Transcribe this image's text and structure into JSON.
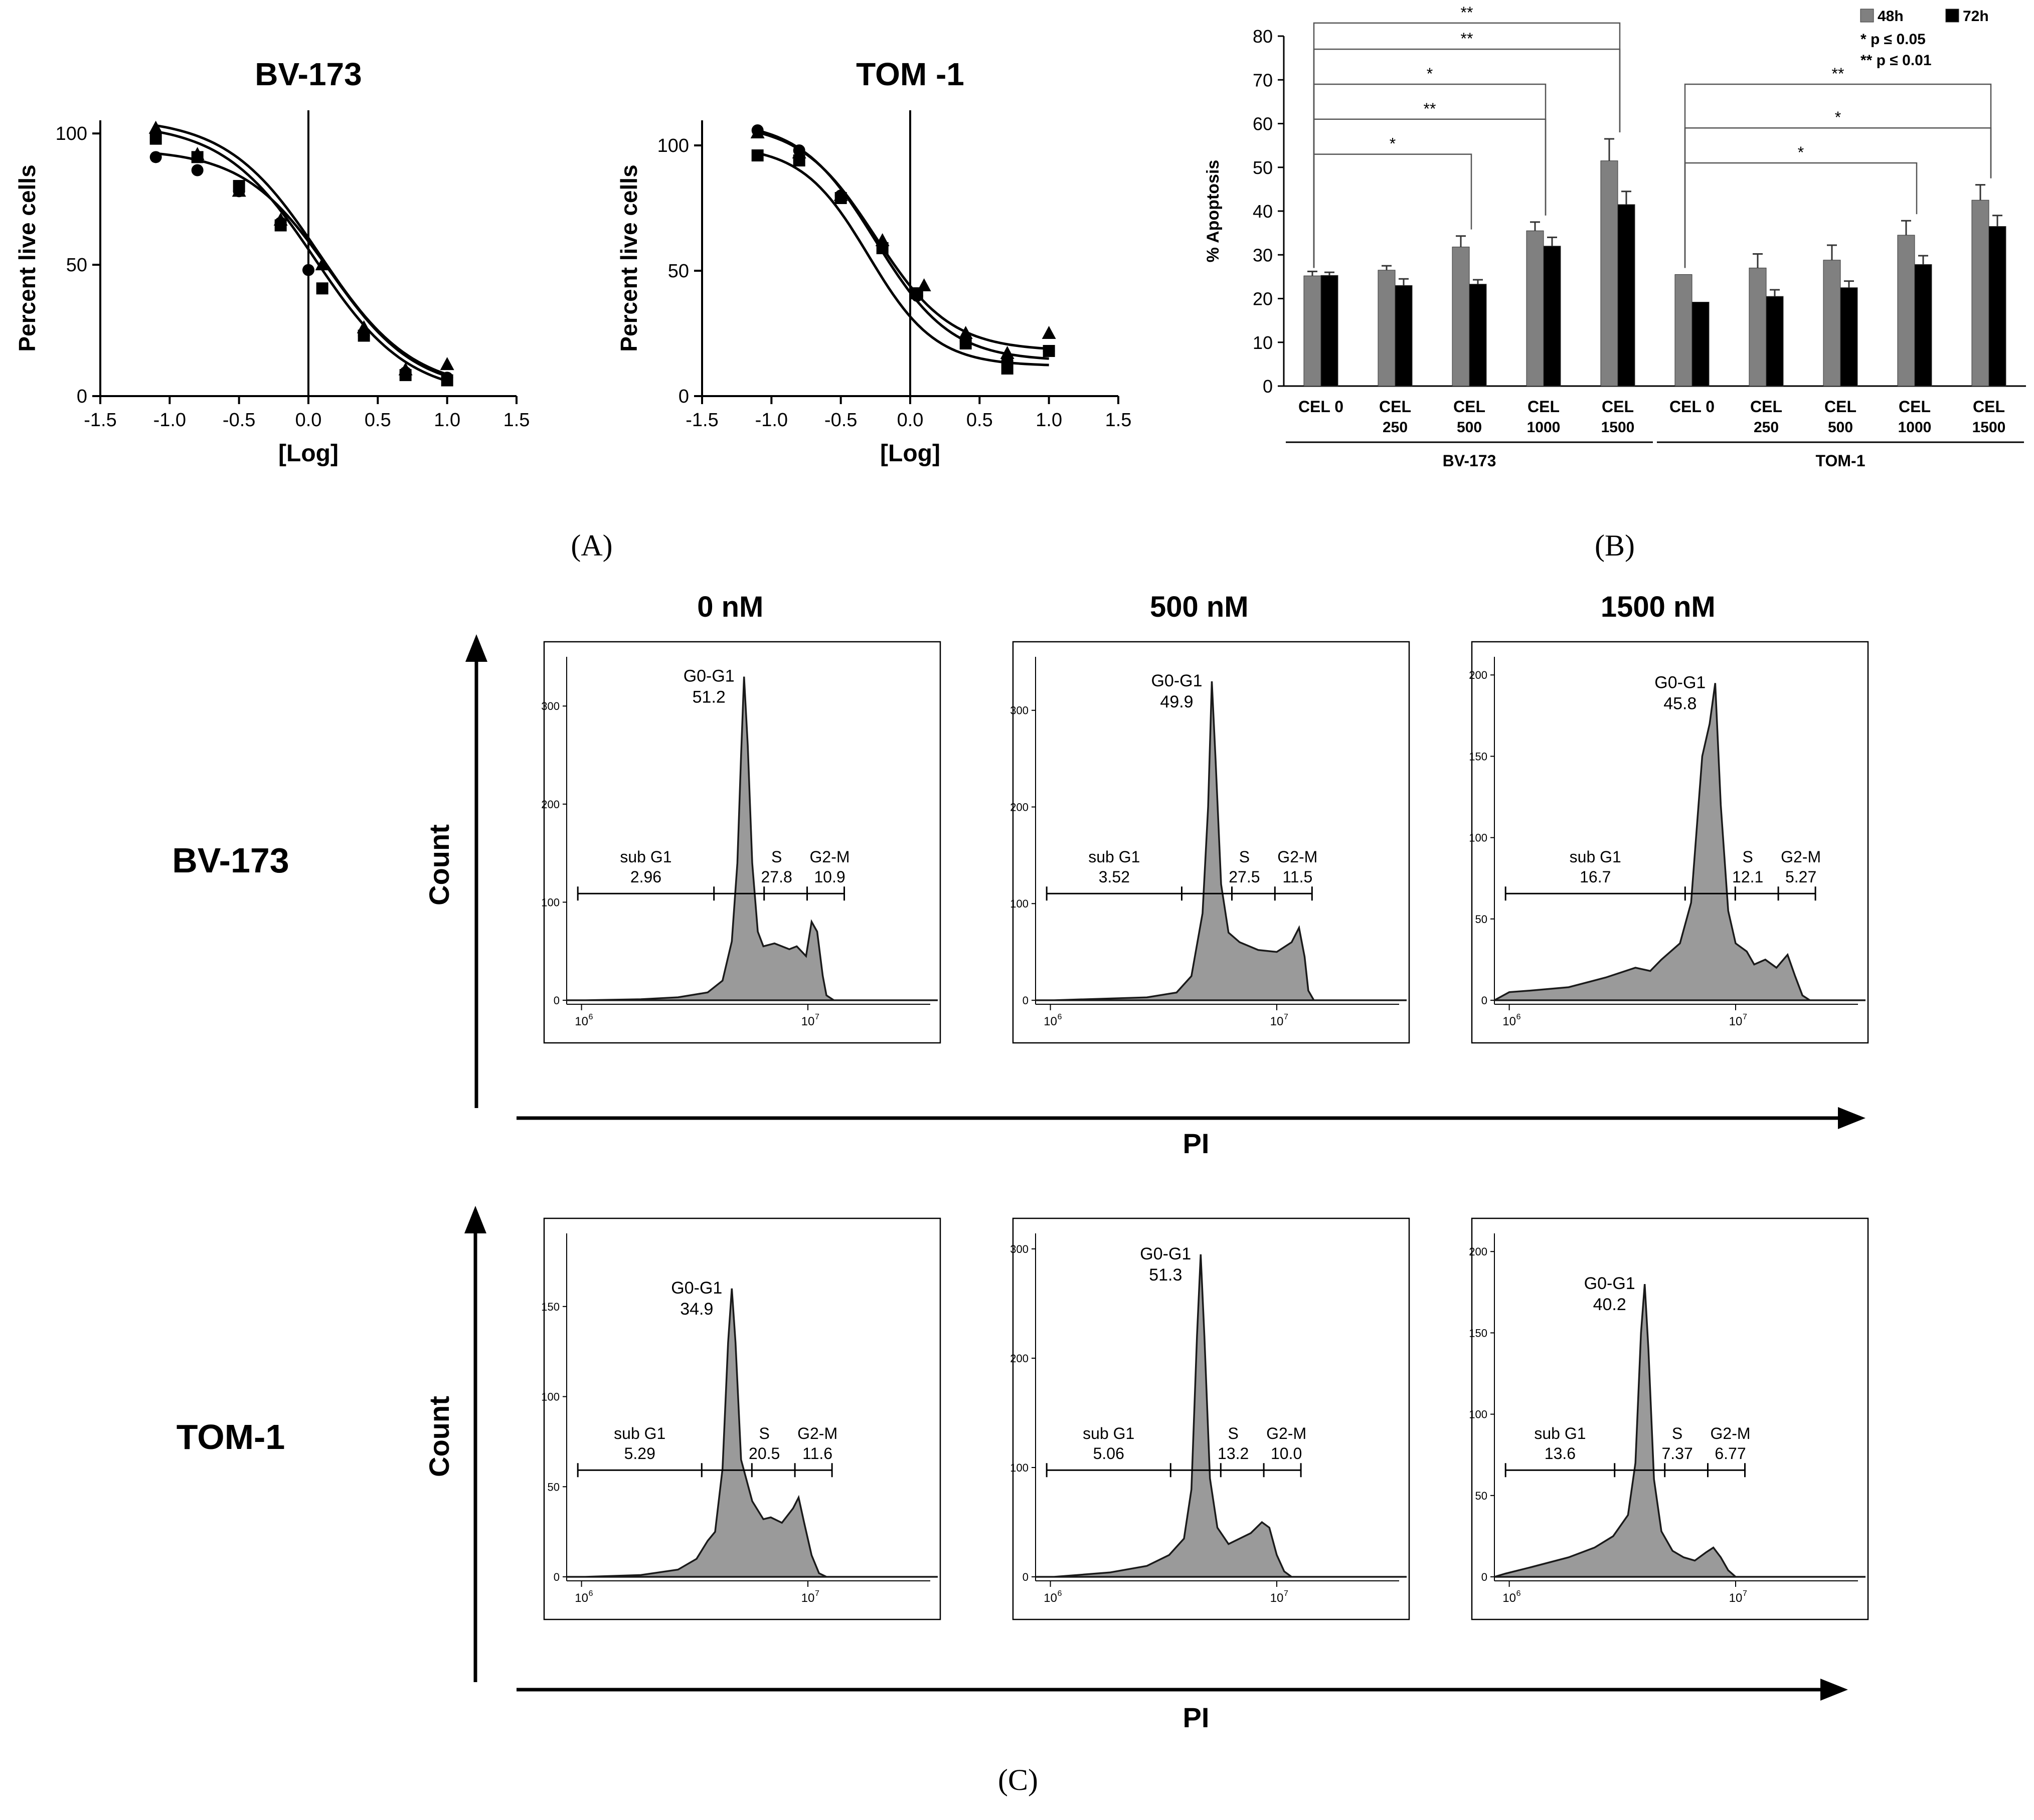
{
  "panel_labels": {
    "A": "(A)",
    "B": "(B)",
    "C": "(C)"
  },
  "chart_data": [
    {
      "id": "A1",
      "type": "scatter",
      "title": "BV-173",
      "xlabel": "[Log]",
      "ylabel": "Percent live cells",
      "xlim": [
        -1.5,
        1.5
      ],
      "ylim": [
        0,
        105
      ],
      "xticks": [
        "-1.5",
        "-1.0",
        "-0.5",
        "0.0",
        "0.5",
        "1.0",
        "1.5"
      ],
      "yticks": [
        "0",
        "50",
        "100"
      ],
      "series": [
        {
          "marker": "circle",
          "x": [
            -1.1,
            -0.8,
            -0.5,
            -0.2,
            0.0,
            0.4,
            0.7,
            1.0
          ],
          "y": [
            91,
            86,
            78,
            66,
            48,
            23,
            9,
            7
          ],
          "fit": {
            "top": 94,
            "bottom": 2,
            "ic50": 0.15,
            "hill": 1.4
          }
        },
        {
          "marker": "square",
          "x": [
            -1.1,
            -0.8,
            -0.5,
            -0.2,
            0.1,
            0.4,
            0.7,
            1.0
          ],
          "y": [
            98,
            91,
            80,
            65,
            41,
            23,
            8,
            6
          ],
          "fit": {
            "top": 104,
            "bottom": 0,
            "ic50": 0.05,
            "hill": 1.3
          }
        },
        {
          "marker": "triangle",
          "x": [
            -1.1,
            -0.8,
            -0.5,
            -0.2,
            0.1,
            0.4,
            0.7,
            1.0
          ],
          "y": [
            102,
            92,
            78,
            67,
            50,
            26,
            10,
            12
          ],
          "fit": {
            "top": 106,
            "bottom": 2,
            "ic50": 0.08,
            "hill": 1.3
          }
        }
      ]
    },
    {
      "id": "A2",
      "type": "scatter",
      "title": "TOM -1",
      "xlabel": "[Log]",
      "ylabel": "Percent live cells",
      "xlim": [
        -1.5,
        1.5
      ],
      "ylim": [
        0,
        110
      ],
      "xticks": [
        "-1.5",
        "-1.0",
        "-0.5",
        "0.0",
        "0.5",
        "1.0",
        "1.5"
      ],
      "yticks": [
        "0",
        "50",
        "100"
      ],
      "series": [
        {
          "marker": "circle",
          "x": [
            -1.1,
            -0.8,
            -0.5,
            -0.2,
            0.05,
            0.4,
            0.7,
            1.0
          ],
          "y": [
            106,
            98,
            80,
            60,
            40,
            22,
            14,
            18
          ],
          "fit": {
            "top": 110,
            "bottom": 14,
            "ic50": -0.25,
            "hill": 1.6
          }
        },
        {
          "marker": "square",
          "x": [
            -1.1,
            -0.8,
            -0.5,
            -0.2,
            0.05,
            0.4,
            0.7,
            1.0
          ],
          "y": [
            96,
            94,
            79,
            59,
            41,
            21,
            11,
            18
          ],
          "fit": {
            "top": 100,
            "bottom": 12,
            "ic50": -0.3,
            "hill": 1.8
          }
        },
        {
          "marker": "triangle",
          "x": [
            -1.1,
            -0.8,
            -0.5,
            -0.2,
            0.1,
            0.4,
            0.7,
            1.0
          ],
          "y": [
            105,
            97,
            80,
            62,
            44,
            25,
            17,
            25
          ],
          "fit": {
            "top": 109,
            "bottom": 18,
            "ic50": -0.25,
            "hill": 1.6
          }
        }
      ]
    },
    {
      "id": "B",
      "type": "bar",
      "ylabel": "% Apoptosis",
      "ylim": [
        0,
        80
      ],
      "yticks": [
        "0",
        "10",
        "20",
        "30",
        "40",
        "50",
        "60",
        "70",
        "80"
      ],
      "categories": [
        {
          "line1": "CEL 0",
          "line2": ""
        },
        {
          "line1": "CEL",
          "line2": "250"
        },
        {
          "line1": "CEL",
          "line2": "500"
        },
        {
          "line1": "CEL",
          "line2": "1000"
        },
        {
          "line1": "CEL",
          "line2": "1500"
        },
        {
          "line1": "CEL 0",
          "line2": ""
        },
        {
          "line1": "CEL",
          "line2": "250"
        },
        {
          "line1": "CEL",
          "line2": "500"
        },
        {
          "line1": "CEL",
          "line2": "1000"
        },
        {
          "line1": "CEL",
          "line2": "1500"
        }
      ],
      "groups": [
        {
          "label": "BV-173",
          "from": 0,
          "to": 4
        },
        {
          "label": "TOM-1",
          "from": 5,
          "to": 9
        }
      ],
      "series": [
        {
          "name": "48h",
          "color": "#808080",
          "values": [
            25.2,
            26.5,
            31.8,
            35.5,
            51.5,
            25.5,
            27.0,
            28.8,
            34.5,
            42.5
          ],
          "errors": [
            1.0,
            1.0,
            2.5,
            2.0,
            5.0,
            0,
            3.2,
            3.4,
            3.3,
            3.5
          ]
        },
        {
          "name": "72h",
          "color": "#000000",
          "values": [
            25.3,
            23.0,
            23.3,
            32.0,
            41.5,
            19.2,
            20.5,
            22.5,
            27.8,
            36.5
          ],
          "errors": [
            0.7,
            1.5,
            1.0,
            2.0,
            3.0,
            0,
            1.5,
            1.5,
            2.0,
            2.5
          ]
        }
      ],
      "significance": [
        {
          "from": 0,
          "to": 2,
          "label": "*"
        },
        {
          "from": 0,
          "to": 3,
          "label": "**"
        },
        {
          "from": 0,
          "to": 3,
          "label": "*"
        },
        {
          "from": 0,
          "to": 4,
          "label": "**"
        },
        {
          "from": 0,
          "to": 4,
          "label": "**"
        },
        {
          "from": 5,
          "to": 8,
          "label": "*"
        },
        {
          "from": 5,
          "to": 9,
          "label": "*"
        },
        {
          "from": 5,
          "to": 9,
          "label": "**"
        }
      ],
      "legend": {
        "items": [
          "48h",
          "72h"
        ],
        "notes": [
          "*  p ≤ 0.05",
          "** p ≤ 0.01"
        ],
        "placement": "top-right"
      }
    },
    {
      "id": "C",
      "type": "area",
      "column_titles": [
        "0 nM",
        "500 nM",
        "1500 nM"
      ],
      "row_labels": [
        "BV-173",
        "TOM-1"
      ],
      "ylabel": "Count",
      "xlabel": "PI",
      "tick_base": "10",
      "tick_exps": [
        "6",
        "7"
      ],
      "histograms": [
        {
          "row": 0,
          "col": 0,
          "ymax": 340,
          "yticks": [
            "0",
            "100",
            "200",
            "300"
          ],
          "gates": {
            "subG1": "2.96",
            "G0G1": "51.2",
            "S": "27.8",
            "G2M": "10.9"
          },
          "profile": [
            [
              0.0,
              0
            ],
            [
              0.05,
              0
            ],
            [
              0.2,
              1
            ],
            [
              0.3,
              3
            ],
            [
              0.38,
              8
            ],
            [
              0.42,
              20
            ],
            [
              0.445,
              60
            ],
            [
              0.46,
              140
            ],
            [
              0.47,
              250
            ],
            [
              0.478,
              330
            ],
            [
              0.488,
              260
            ],
            [
              0.5,
              140
            ],
            [
              0.515,
              70
            ],
            [
              0.53,
              55
            ],
            [
              0.56,
              58
            ],
            [
              0.6,
              52
            ],
            [
              0.62,
              55
            ],
            [
              0.645,
              45
            ],
            [
              0.66,
              80
            ],
            [
              0.675,
              70
            ],
            [
              0.69,
              25
            ],
            [
              0.7,
              5
            ],
            [
              0.72,
              0
            ],
            [
              1.0,
              0
            ]
          ]
        },
        {
          "row": 0,
          "col": 1,
          "ymax": 345,
          "yticks": [
            "0",
            "100",
            "200",
            "300"
          ],
          "gates": {
            "subG1": "3.52",
            "G0G1": "49.9",
            "S": "27.5",
            "G2M": "11.5"
          },
          "profile": [
            [
              0.0,
              0
            ],
            [
              0.05,
              0
            ],
            [
              0.3,
              3
            ],
            [
              0.38,
              8
            ],
            [
              0.42,
              25
            ],
            [
              0.45,
              90
            ],
            [
              0.465,
              200
            ],
            [
              0.475,
              330
            ],
            [
              0.485,
              250
            ],
            [
              0.5,
              120
            ],
            [
              0.52,
              70
            ],
            [
              0.55,
              60
            ],
            [
              0.6,
              52
            ],
            [
              0.65,
              50
            ],
            [
              0.69,
              60
            ],
            [
              0.71,
              75
            ],
            [
              0.725,
              45
            ],
            [
              0.735,
              10
            ],
            [
              0.75,
              0
            ],
            [
              1.0,
              0
            ]
          ]
        },
        {
          "row": 0,
          "col": 2,
          "ymax": 205,
          "yticks": [
            "0",
            "50",
            "100",
            "150",
            "200"
          ],
          "gates": {
            "subG1": "16.7",
            "G0G1": "45.8",
            "S": "12.1",
            "G2M": "5.27"
          },
          "profile": [
            [
              0.0,
              0
            ],
            [
              0.04,
              5
            ],
            [
              0.1,
              6
            ],
            [
              0.2,
              8
            ],
            [
              0.3,
              14
            ],
            [
              0.38,
              20
            ],
            [
              0.42,
              18
            ],
            [
              0.45,
              25
            ],
            [
              0.5,
              35
            ],
            [
              0.53,
              60
            ],
            [
              0.56,
              150
            ],
            [
              0.58,
              170
            ],
            [
              0.595,
              195
            ],
            [
              0.61,
              120
            ],
            [
              0.63,
              55
            ],
            [
              0.65,
              35
            ],
            [
              0.68,
              30
            ],
            [
              0.7,
              22
            ],
            [
              0.73,
              25
            ],
            [
              0.76,
              20
            ],
            [
              0.79,
              28
            ],
            [
              0.81,
              15
            ],
            [
              0.83,
              3
            ],
            [
              0.85,
              0
            ],
            [
              1.0,
              0
            ]
          ]
        },
        {
          "row": 1,
          "col": 0,
          "ymax": 185,
          "yticks": [
            "0",
            "50",
            "100",
            "150"
          ],
          "gates": {
            "subG1": "5.29",
            "G0G1": "34.9",
            "S": "20.5",
            "G2M": "11.6"
          },
          "profile": [
            [
              0.0,
              0
            ],
            [
              0.05,
              0
            ],
            [
              0.2,
              1
            ],
            [
              0.3,
              4
            ],
            [
              0.35,
              10
            ],
            [
              0.38,
              20
            ],
            [
              0.4,
              25
            ],
            [
              0.42,
              60
            ],
            [
              0.435,
              130
            ],
            [
              0.445,
              160
            ],
            [
              0.455,
              130
            ],
            [
              0.47,
              65
            ],
            [
              0.5,
              42
            ],
            [
              0.53,
              32
            ],
            [
              0.55,
              33
            ],
            [
              0.58,
              30
            ],
            [
              0.61,
              38
            ],
            [
              0.625,
              44
            ],
            [
              0.64,
              30
            ],
            [
              0.66,
              12
            ],
            [
              0.68,
              2
            ],
            [
              0.7,
              0
            ],
            [
              1.0,
              0
            ]
          ]
        },
        {
          "row": 1,
          "col": 1,
          "ymax": 305,
          "yticks": [
            "0",
            "100",
            "200",
            "300"
          ],
          "gates": {
            "subG1": "5.06",
            "G0G1": "51.3",
            "S": "13.2",
            "G2M": "10.0"
          },
          "profile": [
            [
              0.0,
              0
            ],
            [
              0.05,
              0
            ],
            [
              0.2,
              4
            ],
            [
              0.3,
              10
            ],
            [
              0.36,
              20
            ],
            [
              0.4,
              35
            ],
            [
              0.42,
              80
            ],
            [
              0.435,
              220
            ],
            [
              0.445,
              295
            ],
            [
              0.455,
              220
            ],
            [
              0.47,
              90
            ],
            [
              0.49,
              45
            ],
            [
              0.52,
              30
            ],
            [
              0.55,
              35
            ],
            [
              0.58,
              40
            ],
            [
              0.61,
              50
            ],
            [
              0.63,
              45
            ],
            [
              0.65,
              20
            ],
            [
              0.67,
              5
            ],
            [
              0.69,
              0
            ],
            [
              1.0,
              0
            ]
          ]
        },
        {
          "row": 1,
          "col": 2,
          "ymax": 205,
          "yticks": [
            "0",
            "50",
            "100",
            "150",
            "200"
          ],
          "gates": {
            "subG1": "13.6",
            "G0G1": "40.2",
            "S": "7.37",
            "G2M": "6.77"
          },
          "profile": [
            [
              0.0,
              0
            ],
            [
              0.03,
              2
            ],
            [
              0.1,
              6
            ],
            [
              0.2,
              12
            ],
            [
              0.27,
              18
            ],
            [
              0.32,
              25
            ],
            [
              0.36,
              38
            ],
            [
              0.38,
              70
            ],
            [
              0.395,
              150
            ],
            [
              0.405,
              180
            ],
            [
              0.415,
              140
            ],
            [
              0.43,
              60
            ],
            [
              0.45,
              28
            ],
            [
              0.48,
              16
            ],
            [
              0.51,
              12
            ],
            [
              0.54,
              10
            ],
            [
              0.57,
              15
            ],
            [
              0.59,
              18
            ],
            [
              0.61,
              12
            ],
            [
              0.63,
              4
            ],
            [
              0.65,
              0
            ],
            [
              1.0,
              0
            ]
          ]
        }
      ]
    }
  ]
}
